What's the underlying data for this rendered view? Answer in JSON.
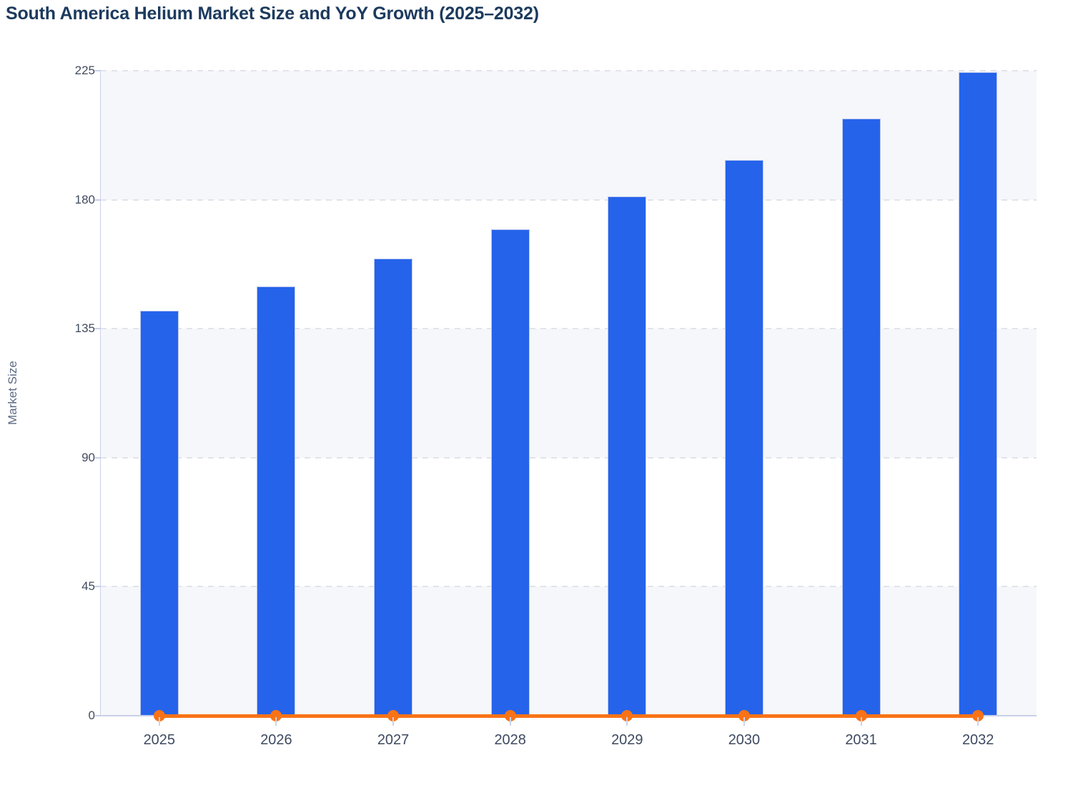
{
  "chart_data": {
    "type": "bar",
    "title": "South America Helium Market Size and YoY Growth (2025–2032)",
    "ylabel": "Market Size",
    "xlabel": "",
    "categories": [
      "2025",
      "2026",
      "2027",
      "2028",
      "2029",
      "2030",
      "2031",
      "2032"
    ],
    "series": [
      {
        "name": "Market Size",
        "type": "bar",
        "color": "#2563eb",
        "values": [
          141.3,
          149.8,
          159.4,
          169.6,
          181.1,
          193.8,
          208.2,
          224.5
        ]
      },
      {
        "name": "YoY Growth",
        "type": "line",
        "color": "#f97316",
        "values": [
          0,
          0,
          0,
          0,
          0,
          0,
          0,
          0
        ],
        "note": "YoY growth line renders flat at ≈0 on the shared Market Size axis, with a round marker at every year"
      }
    ],
    "ylim": [
      0,
      225
    ],
    "yticks": [
      0,
      45,
      90,
      135,
      180,
      225
    ],
    "grid": "horizontal dashed gridlines at each y tick",
    "plot_band_colors": [
      "#f6f7fa",
      "#ffffff"
    ],
    "legend": "none",
    "colors": {
      "title_text": "#1c3a5e",
      "axis_tick_text": "#414b5f",
      "axis_line": "#c9d0e8",
      "gridline": "#e2e4ea",
      "bar_fill": "#2563eb",
      "bar_stroke": "#bcc9ef",
      "line_color": "#f97316"
    }
  }
}
